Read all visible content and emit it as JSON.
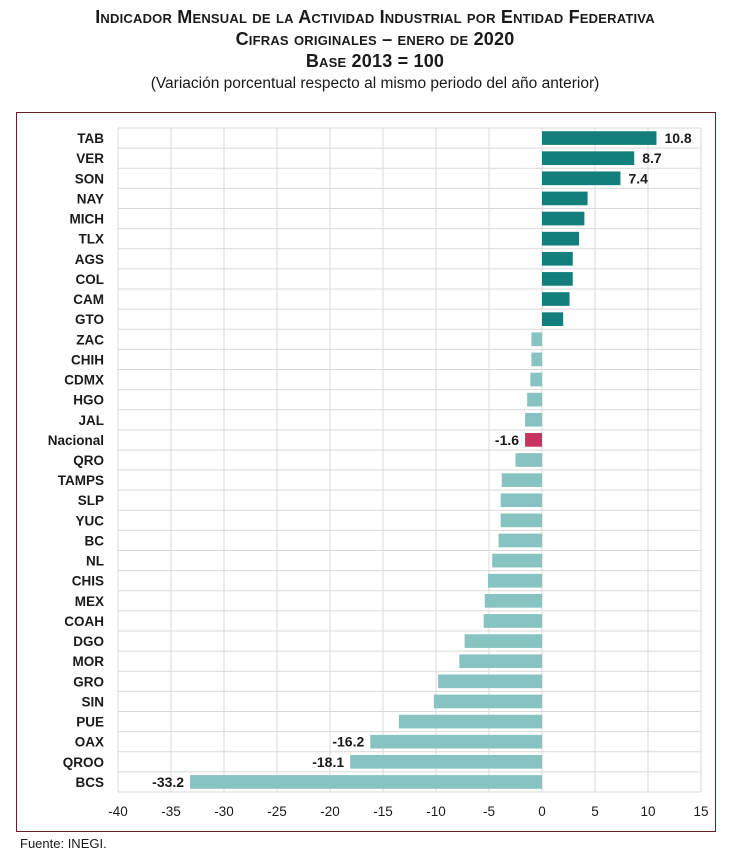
{
  "title_line1": "Indicador Mensual de la Actividad Industrial por Entidad Federativa",
  "title_line2": "Cifras originales – enero de 2020",
  "title_line3": "Base 2013 = 100",
  "subtitle": "(Variación porcentual respecto al mismo periodo del año anterior)",
  "source": "Fuente: INEGI.",
  "colors": {
    "positive": "#127f7d",
    "negative": "#87c3c1",
    "national": "#c8345f",
    "grid": "#d9d9d9",
    "frame": "#6b1c2a"
  },
  "chart_data": {
    "type": "bar",
    "orientation": "horizontal",
    "title": "Indicador Mensual de la Actividad Industrial por Entidad Federativa",
    "xlabel": "",
    "ylabel": "",
    "xlim": [
      -40,
      15
    ],
    "xticks": [
      -40,
      -35,
      -30,
      -25,
      -20,
      -15,
      -10,
      -5,
      0,
      5,
      10,
      15
    ],
    "grid": true,
    "categories": [
      "TAB",
      "VER",
      "SON",
      "NAY",
      "MICH",
      "TLX",
      "AGS",
      "COL",
      "CAM",
      "GTO",
      "ZAC",
      "CHIH",
      "CDMX",
      "HGO",
      "JAL",
      "Nacional",
      "QRO",
      "TAMPS",
      "SLP",
      "YUC",
      "BC",
      "NL",
      "CHIS",
      "MEX",
      "COAH",
      "DGO",
      "MOR",
      "GRO",
      "SIN",
      "PUE",
      "OAX",
      "QROO",
      "BCS"
    ],
    "values": [
      10.8,
      8.7,
      7.4,
      4.3,
      4.0,
      3.5,
      2.9,
      2.9,
      2.6,
      2.0,
      -1.0,
      -1.0,
      -1.1,
      -1.4,
      -1.6,
      -1.6,
      -2.5,
      -3.8,
      -3.9,
      -3.9,
      -4.1,
      -4.7,
      -5.1,
      -5.4,
      -5.5,
      -7.3,
      -7.8,
      -9.8,
      -10.2,
      -13.5,
      -16.2,
      -18.1,
      -33.2
    ],
    "labeled_values": {
      "TAB": "10.8",
      "VER": "8.7",
      "SON": "7.4",
      "Nacional": "-1.6",
      "OAX": "-16.2",
      "QROO": "-18.1",
      "BCS": "-33.2"
    },
    "highlight": "Nacional"
  }
}
